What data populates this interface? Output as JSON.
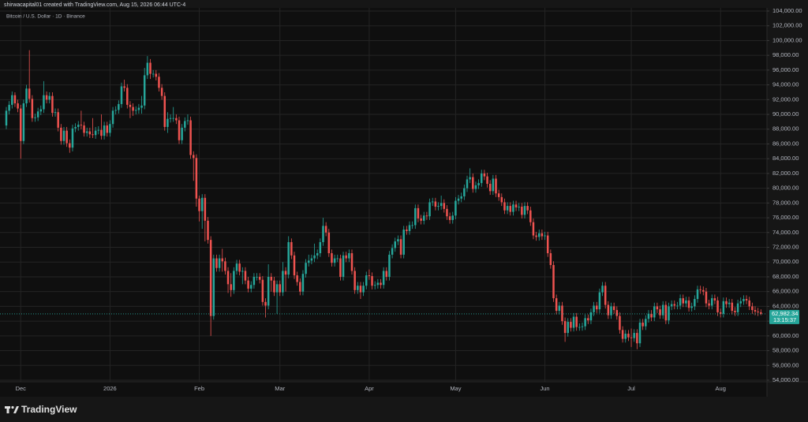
{
  "chart_data": {
    "type": "candlestick",
    "attribution": "shirwacapital01 created with TradingView.com, Aug 15, 2026 06:44 UTC-4",
    "title": "Bitcoin / U.S. Dollar · 1D · Binance",
    "brand": "TradingView",
    "up_color": "#26a69a",
    "down_color": "#ef5350",
    "grid": true,
    "categories": [
      null,
      null,
      null,
      null,
      null,
      "Dec",
      null,
      null,
      null,
      null,
      null,
      null,
      null,
      null,
      null,
      null,
      null,
      null,
      null,
      null,
      null,
      null,
      null,
      null,
      null,
      null,
      null,
      null,
      null,
      null,
      null,
      null,
      null,
      null,
      null,
      null,
      "2026",
      null,
      null,
      null,
      null,
      null,
      null,
      null,
      null,
      null,
      null,
      null,
      null,
      null,
      null,
      null,
      null,
      null,
      null,
      null,
      null,
      null,
      null,
      null,
      null,
      null,
      null,
      null,
      null,
      null,
      null,
      "Feb",
      null,
      null,
      null,
      null,
      null,
      null,
      null,
      null,
      null,
      null,
      null,
      null,
      null,
      null,
      null,
      null,
      null,
      null,
      null,
      null,
      null,
      null,
      null,
      null,
      null,
      null,
      null,
      "Mar",
      null,
      null,
      null,
      null,
      null,
      null,
      null,
      null,
      null,
      null,
      null,
      null,
      null,
      null,
      null,
      null,
      null,
      null,
      null,
      null,
      null,
      null,
      null,
      null,
      null,
      null,
      null,
      null,
      null,
      null,
      "Apr",
      null,
      null,
      null,
      null,
      null,
      null,
      null,
      null,
      null,
      null,
      null,
      null,
      null,
      null,
      null,
      null,
      null,
      null,
      null,
      null,
      null,
      null,
      null,
      null,
      null,
      null,
      null,
      null,
      null,
      "May",
      null,
      null,
      null,
      null,
      null,
      null,
      null,
      null,
      null,
      null,
      null,
      null,
      null,
      null,
      null,
      null,
      null,
      null,
      null,
      null,
      null,
      null,
      null,
      null,
      null,
      null,
      null,
      null,
      null,
      null,
      "Jun",
      null,
      null,
      null,
      null,
      null,
      null,
      null,
      null,
      null,
      null,
      null,
      null,
      null,
      null,
      null,
      null,
      null,
      null,
      null,
      null,
      null,
      null,
      null,
      null,
      null,
      null,
      null,
      null,
      null,
      "Jul",
      null,
      null,
      null,
      null,
      null,
      null,
      null,
      null,
      null,
      null,
      null,
      null,
      null,
      null,
      null,
      null,
      null,
      null,
      null,
      null,
      null,
      null,
      null,
      null,
      null,
      null,
      null,
      null,
      null,
      null,
      "Aug",
      null,
      null,
      null,
      null,
      null,
      null,
      null,
      null,
      null,
      null,
      null,
      null,
      null,
      null
    ],
    "open": [
      88500,
      90500,
      91300,
      92600,
      91500,
      90800,
      86400,
      91500,
      93500,
      92100,
      89500,
      89600,
      90400,
      90700,
      92600,
      92000,
      92500,
      90200,
      90300,
      88200,
      86400,
      87800,
      86100,
      85500,
      88100,
      88300,
      88600,
      88500,
      87500,
      87700,
      87300,
      87200,
      87800,
      87900,
      87100,
      88500,
      87500,
      88700,
      90500,
      90600,
      91400,
      93800,
      93600,
      91300,
      91000,
      90500,
      90600,
      90900,
      91200,
      95300,
      97000,
      95500,
      95500,
      95100,
      93600,
      92500,
      88300,
      89400,
      89500,
      89500,
      89200,
      86500,
      88200,
      89100,
      89200,
      84500,
      84100,
      78600,
      76900,
      78700,
      75600,
      73000,
      62700,
      70500,
      69200,
      70500,
      70100,
      68800,
      67000,
      66200,
      68800,
      69800,
      68700,
      68800,
      67500,
      66400,
      66900,
      68000,
      68000,
      67600,
      64600,
      64100,
      68000,
      67500,
      65900,
      67000,
      65900,
      68800,
      68300,
      72700,
      70900,
      68200,
      67300,
      66000,
      68400,
      69900,
      70200,
      70500,
      70900,
      71200,
      72700,
      74900,
      74000,
      71200,
      69900,
      70500,
      70500,
      68000,
      70900,
      70500,
      71200,
      68800,
      66200,
      66800,
      65900,
      66800,
      68200,
      68100,
      66800,
      66900,
      67200,
      66900,
      68800,
      68000,
      71000,
      71900,
      72800,
      73100,
      71000,
      74400,
      74200,
      75000,
      75000,
      77300,
      75900,
      75600,
      76300,
      76200,
      78100,
      78200,
      77500,
      77600,
      78000,
      77200,
      76200,
      75700,
      76300,
      78300,
      78600,
      78900,
      80000,
      81200,
      81500,
      79900,
      80400,
      80700,
      82000,
      81600,
      80600,
      79600,
      81300,
      79300,
      78800,
      78100,
      77000,
      77600,
      76800,
      77800,
      77400,
      77500,
      76400,
      77600,
      77000,
      75400,
      73600,
      73400,
      73900,
      73500,
      73600,
      71200,
      69600,
      65100,
      63400,
      64100,
      62000,
      60400,
      61900,
      61100,
      62600,
      61200,
      61200,
      61300,
      62400,
      62100,
      63200,
      64100,
      63600,
      65900,
      66800,
      64200,
      62800,
      64000,
      63500,
      62700,
      60800,
      59600,
      60300,
      59800,
      59700,
      60400,
      59000,
      61800,
      61300,
      62300,
      63000,
      62500,
      64000,
      63600,
      62800,
      64200,
      62100,
      64000,
      64300,
      64100,
      64100,
      65100,
      64400,
      64800,
      63800,
      64000,
      65000,
      66300,
      66200,
      66000,
      64400,
      64100,
      65100,
      64800,
      63200,
      63000,
      64700,
      64300,
      64500,
      63400,
      63200,
      64400,
      64700,
      65000,
      64800,
      64000,
      63500,
      63300,
      63200
    ],
    "high": [
      91000,
      91800,
      93100,
      93000,
      92000,
      91300,
      92000,
      94000,
      98700,
      92600,
      90100,
      90900,
      91200,
      94500,
      93100,
      93000,
      93000,
      90800,
      90800,
      88700,
      88300,
      88300,
      86600,
      88600,
      88800,
      89100,
      90500,
      89000,
      88200,
      88200,
      89500,
      88300,
      88400,
      90000,
      89000,
      89000,
      89200,
      91000,
      91100,
      91900,
      94300,
      94700,
      94100,
      91800,
      91500,
      91100,
      91400,
      92500,
      96300,
      97900,
      97500,
      96000,
      96000,
      95600,
      94100,
      93000,
      90300,
      90000,
      91000,
      90000,
      89700,
      88700,
      89600,
      90000,
      89700,
      85000,
      84600,
      79000,
      79200,
      79200,
      76100,
      73500,
      71000,
      71000,
      71000,
      71800,
      70600,
      69300,
      68500,
      69300,
      70300,
      70300,
      69300,
      69300,
      68000,
      67400,
      68500,
      68500,
      68500,
      68100,
      65100,
      69700,
      68500,
      68000,
      67500,
      67500,
      70000,
      69300,
      73500,
      73200,
      71400,
      68700,
      67800,
      68900,
      70400,
      71000,
      71000,
      72500,
      71700,
      73200,
      76000,
      75400,
      74500,
      71700,
      71000,
      71000,
      71000,
      71400,
      71400,
      71700,
      71700,
      69300,
      67300,
      67300,
      67300,
      68700,
      69000,
      68600,
      67400,
      67700,
      67700,
      69300,
      69300,
      71500,
      72400,
      73300,
      73600,
      73600,
      74900,
      74900,
      75500,
      75500,
      77800,
      77800,
      76400,
      76800,
      76800,
      78600,
      78700,
      78700,
      78100,
      79000,
      78500,
      77700,
      76700,
      76800,
      78800,
      79100,
      79400,
      80500,
      81700,
      82700,
      82000,
      80900,
      81200,
      82500,
      82500,
      82100,
      81100,
      81800,
      81800,
      79800,
      79300,
      78600,
      78100,
      78100,
      78300,
      78300,
      78000,
      78000,
      78100,
      78100,
      77500,
      75900,
      74100,
      74400,
      74400,
      74100,
      74100,
      71700,
      70100,
      65600,
      64600,
      64600,
      62500,
      62400,
      62400,
      63100,
      63100,
      61700,
      61800,
      62900,
      62900,
      63700,
      64600,
      64600,
      66400,
      67300,
      67300,
      64700,
      64500,
      64500,
      64000,
      63200,
      61300,
      60800,
      60800,
      61000,
      60900,
      60900,
      62300,
      62300,
      62800,
      63500,
      63500,
      64500,
      64500,
      64100,
      64700,
      64700,
      64500,
      64800,
      64800,
      64600,
      65600,
      65600,
      65300,
      65300,
      64500,
      65500,
      66800,
      66800,
      66700,
      66500,
      64900,
      65600,
      65600,
      65300,
      63700,
      65200,
      65200,
      65000,
      65000,
      63900,
      64900,
      65200,
      65500,
      65500,
      65300,
      64500,
      64000,
      63800,
      63600
    ],
    "low": [
      88000,
      90000,
      90800,
      91000,
      90300,
      84000,
      86000,
      91000,
      91600,
      89000,
      89000,
      89100,
      89900,
      90200,
      91500,
      91500,
      89700,
      89700,
      87700,
      85900,
      85900,
      85600,
      84800,
      85000,
      87600,
      87800,
      88000,
      87000,
      87000,
      86800,
      86800,
      86700,
      87300,
      86600,
      86600,
      87000,
      87000,
      88200,
      90000,
      90100,
      90900,
      93100,
      90800,
      89500,
      89800,
      90000,
      90100,
      90100,
      90700,
      94800,
      94800,
      95000,
      94600,
      93100,
      92000,
      87800,
      87500,
      88900,
      89000,
      88700,
      86000,
      86000,
      87700,
      88600,
      84000,
      81000,
      77500,
      75500,
      74500,
      72800,
      72500,
      60000,
      62200,
      68700,
      68700,
      68700,
      68300,
      65800,
      65300,
      65700,
      68300,
      68200,
      67000,
      67000,
      65900,
      65900,
      66400,
      67500,
      67100,
      64100,
      62500,
      63600,
      66000,
      65400,
      63000,
      65400,
      65400,
      66000,
      67800,
      70400,
      67700,
      66800,
      65500,
      65500,
      67900,
      69400,
      69700,
      70000,
      70400,
      70700,
      72200,
      73500,
      70700,
      69400,
      69400,
      70000,
      67500,
      67500,
      70000,
      70000,
      68300,
      65700,
      65700,
      65000,
      65400,
      66300,
      67600,
      66300,
      66300,
      66400,
      66400,
      66400,
      67500,
      67500,
      70500,
      71400,
      72300,
      70500,
      70500,
      73700,
      73700,
      74500,
      74500,
      75400,
      75100,
      75100,
      75700,
      75700,
      77600,
      77000,
      77000,
      77100,
      76700,
      75700,
      75200,
      75200,
      75800,
      77800,
      78100,
      78400,
      79500,
      80700,
      79400,
      79400,
      79900,
      80200,
      81100,
      80100,
      79100,
      79100,
      78800,
      78300,
      77600,
      76500,
      76500,
      76300,
      76300,
      76900,
      76900,
      75900,
      75900,
      76500,
      74900,
      73100,
      72900,
      72900,
      73000,
      73000,
      70700,
      69100,
      64600,
      62900,
      62900,
      61500,
      59200,
      59900,
      60600,
      60600,
      60700,
      60700,
      60700,
      60800,
      61600,
      61600,
      62700,
      63100,
      63100,
      65400,
      63700,
      62300,
      62300,
      63000,
      62200,
      60300,
      59100,
      59100,
      59300,
      58500,
      59200,
      58200,
      58500,
      60800,
      60800,
      61800,
      62000,
      62000,
      63100,
      62300,
      62300,
      61600,
      61600,
      63500,
      63600,
      63600,
      63600,
      63900,
      63900,
      63300,
      63300,
      63500,
      64500,
      65700,
      65500,
      63900,
      63600,
      63600,
      64300,
      62700,
      62500,
      62500,
      63800,
      63800,
      62900,
      62700,
      62700,
      63900,
      64200,
      64300,
      63500,
      63000,
      62800,
      62700,
      62800
    ],
    "close": [
      90500,
      91300,
      92600,
      91500,
      90800,
      86400,
      91500,
      93500,
      92100,
      89500,
      89600,
      90400,
      90700,
      92600,
      92000,
      92500,
      90200,
      90300,
      88200,
      86400,
      87800,
      86100,
      85500,
      88100,
      88300,
      88600,
      88500,
      87500,
      87700,
      87300,
      87200,
      87800,
      87900,
      87100,
      88500,
      87500,
      88700,
      90500,
      90600,
      91400,
      93800,
      93600,
      91300,
      91000,
      90500,
      90600,
      90900,
      91200,
      95300,
      97000,
      95500,
      95500,
      95100,
      93600,
      92500,
      88300,
      89400,
      89500,
      89500,
      89200,
      86500,
      88200,
      89100,
      89200,
      84500,
      84100,
      78600,
      76900,
      78700,
      75600,
      73000,
      62700,
      70500,
      69200,
      70500,
      70100,
      68800,
      67000,
      66200,
      68800,
      69800,
      68700,
      68800,
      67500,
      66400,
      66900,
      68000,
      68000,
      67600,
      64600,
      64100,
      68000,
      67500,
      65900,
      67000,
      65900,
      68800,
      68300,
      72700,
      70900,
      68200,
      67300,
      66000,
      68400,
      69900,
      70200,
      70500,
      70900,
      71200,
      72700,
      74900,
      74000,
      71200,
      69900,
      70500,
      70500,
      68000,
      70900,
      70500,
      71200,
      68800,
      66200,
      66800,
      65900,
      66800,
      68200,
      68100,
      66800,
      66900,
      67200,
      66900,
      68800,
      68000,
      71000,
      71900,
      72800,
      73100,
      71000,
      74400,
      74200,
      75000,
      75000,
      77300,
      75900,
      75600,
      76300,
      76200,
      78100,
      78200,
      77500,
      77600,
      78000,
      77200,
      76200,
      75700,
      76300,
      78300,
      78600,
      78900,
      80000,
      81200,
      81500,
      79900,
      80400,
      80700,
      82000,
      81600,
      80600,
      79600,
      81300,
      79300,
      78800,
      78100,
      77000,
      77600,
      76800,
      77800,
      77400,
      77500,
      76400,
      77600,
      77000,
      75400,
      73600,
      73400,
      73900,
      73500,
      73600,
      71200,
      69600,
      65100,
      63400,
      64100,
      62000,
      60400,
      61900,
      61100,
      62600,
      61200,
      61200,
      61300,
      62400,
      62100,
      63200,
      64100,
      63600,
      65900,
      66800,
      64200,
      62800,
      64000,
      63500,
      62700,
      60800,
      59600,
      60300,
      59800,
      59700,
      60400,
      59000,
      61800,
      61300,
      62300,
      63000,
      62500,
      64000,
      63600,
      62800,
      64200,
      62100,
      64000,
      64300,
      64100,
      64100,
      65100,
      64400,
      64800,
      63800,
      64000,
      65000,
      66300,
      66200,
      66000,
      64400,
      64100,
      65100,
      64800,
      63200,
      63000,
      64700,
      64300,
      64500,
      63400,
      63200,
      64400,
      64700,
      65000,
      64800,
      64000,
      63500,
      63300,
      63200,
      62982.34
    ],
    "last_price": {
      "value": 62982.34,
      "label": "62,982.34"
    },
    "countdown": "13:15:37",
    "ylim": [
      54000,
      104000
    ],
    "yticks": [
      {
        "value": 54000,
        "label": "54,000.00"
      },
      {
        "value": 56000,
        "label": "56,000.00"
      },
      {
        "value": 58000,
        "label": "58,000.00"
      },
      {
        "value": 60000,
        "label": "60,000.00"
      },
      {
        "value": 62000,
        "label": "62,000.00"
      },
      {
        "value": 64000,
        "label": "64,000.00"
      },
      {
        "value": 66000,
        "label": "66,000.00"
      },
      {
        "value": 68000,
        "label": "68,000.00"
      },
      {
        "value": 70000,
        "label": "70,000.00"
      },
      {
        "value": 72000,
        "label": "72,000.00"
      },
      {
        "value": 74000,
        "label": "74,000.00"
      },
      {
        "value": 76000,
        "label": "76,000.00"
      },
      {
        "value": 78000,
        "label": "78,000.00"
      },
      {
        "value": 80000,
        "label": "80,000.00"
      },
      {
        "value": 82000,
        "label": "82,000.00"
      },
      {
        "value": 84000,
        "label": "84,000.00"
      },
      {
        "value": 86000,
        "label": "86,000.00"
      },
      {
        "value": 88000,
        "label": "88,000.00"
      },
      {
        "value": 90000,
        "label": "90,000.00"
      },
      {
        "value": 92000,
        "label": "92,000.00"
      },
      {
        "value": 94000,
        "label": "94,000.00"
      },
      {
        "value": 96000,
        "label": "96,000.00"
      },
      {
        "value": 98000,
        "label": "98,000.00"
      },
      {
        "value": 100000,
        "label": "100,000.00"
      },
      {
        "value": 102000,
        "label": "102,000.00"
      },
      {
        "value": 104000,
        "label": "104,000.00"
      }
    ]
  }
}
